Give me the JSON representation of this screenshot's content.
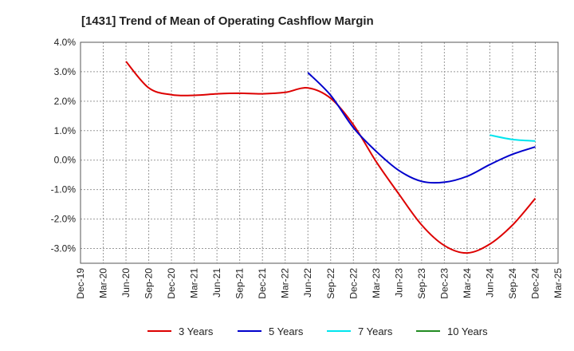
{
  "chart_data": {
    "type": "line",
    "title": "[1431]  Trend of Mean of Operating Cashflow Margin",
    "xlabel": "",
    "ylabel": "",
    "x": [
      "Dec-19",
      "Mar-20",
      "Jun-20",
      "Sep-20",
      "Dec-20",
      "Mar-21",
      "Jun-21",
      "Sep-21",
      "Dec-21",
      "Mar-22",
      "Jun-22",
      "Sep-22",
      "Dec-22",
      "Mar-23",
      "Jun-23",
      "Sep-23",
      "Dec-23",
      "Mar-24",
      "Jun-24",
      "Sep-24",
      "Dec-24",
      "Mar-25"
    ],
    "y_ticks": [
      "4.0%",
      "3.0%",
      "2.0%",
      "1.0%",
      "0.0%",
      "-1.0%",
      "-2.0%",
      "-3.0%"
    ],
    "ylim": [
      -3.5,
      4.0
    ],
    "grid": true,
    "legend_position": "bottom",
    "series": [
      {
        "name": "3 Years",
        "color": "#dd0000",
        "values": [
          null,
          null,
          3.35,
          2.45,
          2.22,
          2.2,
          2.25,
          2.27,
          2.25,
          2.3,
          2.45,
          2.1,
          1.2,
          -0.05,
          -1.15,
          -2.2,
          -2.9,
          -3.15,
          -2.85,
          -2.2,
          -1.3,
          null
        ]
      },
      {
        "name": "5 Years",
        "color": "#0000cc",
        "values": [
          null,
          null,
          null,
          null,
          null,
          null,
          null,
          null,
          null,
          null,
          2.97,
          2.2,
          1.1,
          0.3,
          -0.35,
          -0.72,
          -0.75,
          -0.55,
          -0.15,
          0.2,
          0.45,
          null
        ]
      },
      {
        "name": "7 Years",
        "color": "#00e5ee",
        "values": [
          null,
          null,
          null,
          null,
          null,
          null,
          null,
          null,
          null,
          null,
          null,
          null,
          null,
          null,
          null,
          null,
          null,
          null,
          0.85,
          0.7,
          0.65,
          null
        ]
      },
      {
        "name": "10 Years",
        "color": "#228b22",
        "values": [
          null,
          null,
          null,
          null,
          null,
          null,
          null,
          null,
          null,
          null,
          null,
          null,
          null,
          null,
          null,
          null,
          null,
          null,
          null,
          null,
          null,
          null
        ]
      }
    ]
  }
}
